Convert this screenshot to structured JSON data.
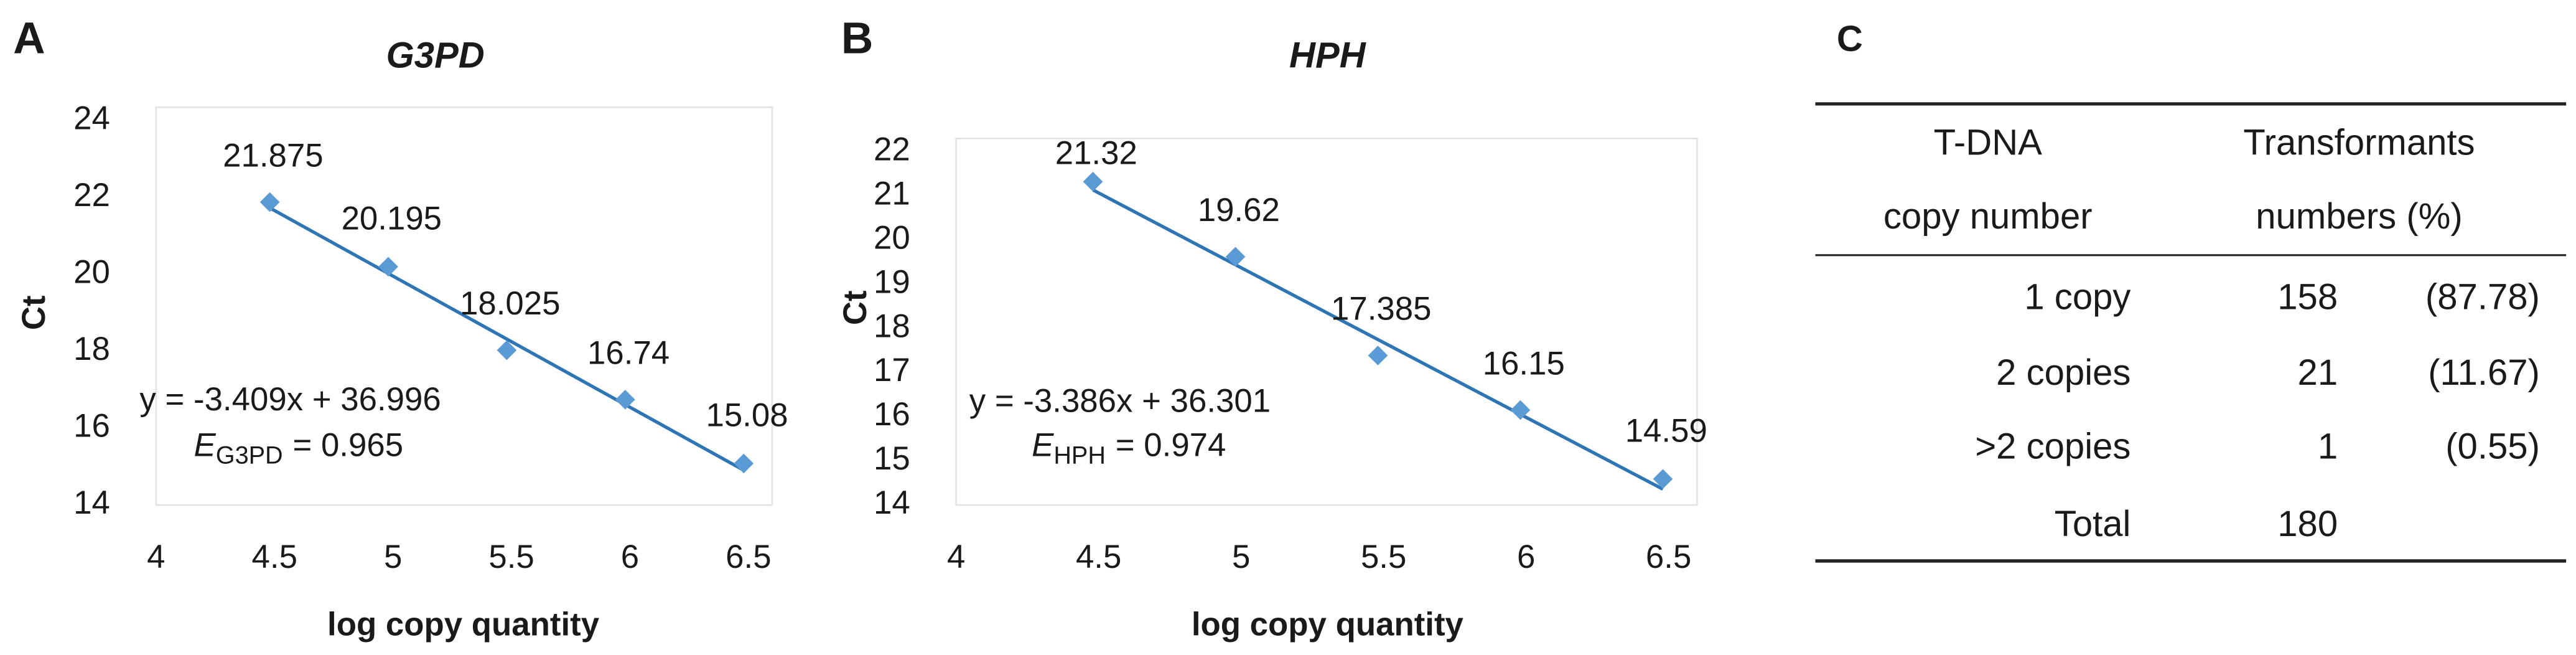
{
  "chart_data": [
    {
      "type": "scatter",
      "panel_label": "A",
      "title": "G3PD",
      "x_label": "log copy quantity",
      "y_label": "Ct",
      "x": [
        4.48,
        4.98,
        5.48,
        5.98,
        6.48
      ],
      "series": [
        {
          "name": "G3PD",
          "color": "#5b9bd5",
          "values": [
            21.875,
            20.195,
            18.025,
            16.74,
            15.08
          ]
        }
      ],
      "fit": {
        "slope": -3.409,
        "intercept": 36.996,
        "color": "#2e75b6"
      },
      "equation": "y = -3.409x + 36.996",
      "efficiency": {
        "symbol": "E",
        "subscript": "G3PD",
        "text": "= 0.965"
      },
      "xlim": [
        4,
        6.6
      ],
      "xticks": [
        4,
        4.5,
        5,
        5.5,
        6,
        6.5
      ],
      "ylim": [
        14,
        24
      ],
      "yticks": [
        14,
        16,
        18,
        20,
        22,
        24
      ],
      "grid": false
    },
    {
      "type": "scatter",
      "panel_label": "B",
      "title": "HPH",
      "x_label": "log copy quantity",
      "y_label": "Ct",
      "x": [
        4.48,
        4.98,
        5.48,
        5.98,
        6.48
      ],
      "series": [
        {
          "name": "HPH",
          "color": "#5b9bd5",
          "values": [
            21.32,
            19.62,
            17.385,
            16.15,
            14.59
          ]
        }
      ],
      "fit": {
        "slope": -3.386,
        "intercept": 36.301,
        "color": "#2e75b6"
      },
      "equation": "y = -3.386x + 36.301",
      "efficiency": {
        "symbol": "E",
        "subscript": "HPH",
        "text": "= 0.974"
      },
      "xlim": [
        4,
        6.6
      ],
      "xticks": [
        4,
        4.5,
        5,
        5.5,
        6,
        6.5
      ],
      "ylim": [
        14,
        22
      ],
      "yticks": [
        14,
        15,
        16,
        17,
        18,
        19,
        20,
        21,
        22
      ],
      "grid": false
    }
  ],
  "table": {
    "panel_label": "C",
    "header": [
      [
        "T-DNA",
        "Transformants"
      ],
      [
        "copy number",
        "numbers (%)"
      ]
    ],
    "rows": [
      [
        "1 copy",
        158,
        "(87.78)"
      ],
      [
        "2 copies",
        21,
        "(11.67)"
      ],
      [
        ">2 copies",
        1,
        "(0.55)"
      ],
      [
        "Total",
        180
      ]
    ]
  }
}
